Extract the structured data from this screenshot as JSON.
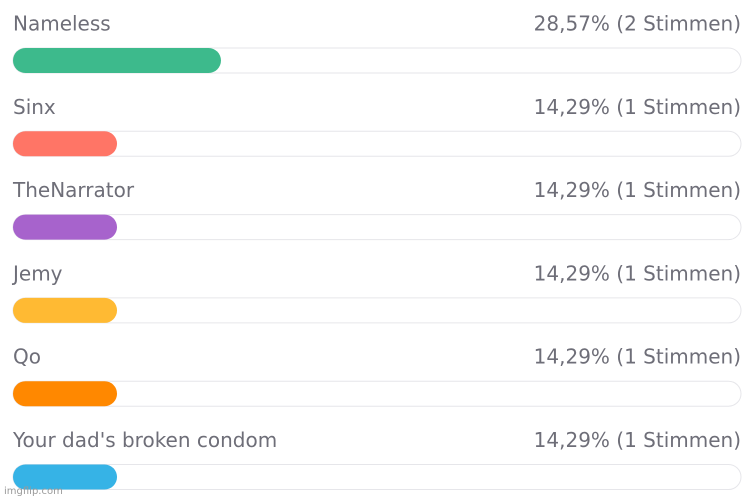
{
  "chart_data": {
    "type": "bar",
    "orientation": "horizontal",
    "categories": [
      "Nameless",
      "Sinx",
      "TheNarrator",
      "Jemy",
      "Qo",
      "Your dad's broken condom"
    ],
    "values": [
      28.57,
      14.29,
      14.29,
      14.29,
      14.29,
      14.29
    ],
    "value_labels": [
      "28,57% (2 Stimmen)",
      "14,29% (1 Stimmen)",
      "14,29% (1 Stimmen)",
      "14,29% (1 Stimmen)",
      "14,29% (1 Stimmen)",
      "14,29% (1 Stimmen)"
    ],
    "colors": [
      "#3dba8c",
      "#ff7566",
      "#a763cc",
      "#ffba33",
      "#ff8800",
      "#36b3e6"
    ],
    "xlim": [
      0,
      100
    ]
  },
  "watermark": "imgflip.com"
}
